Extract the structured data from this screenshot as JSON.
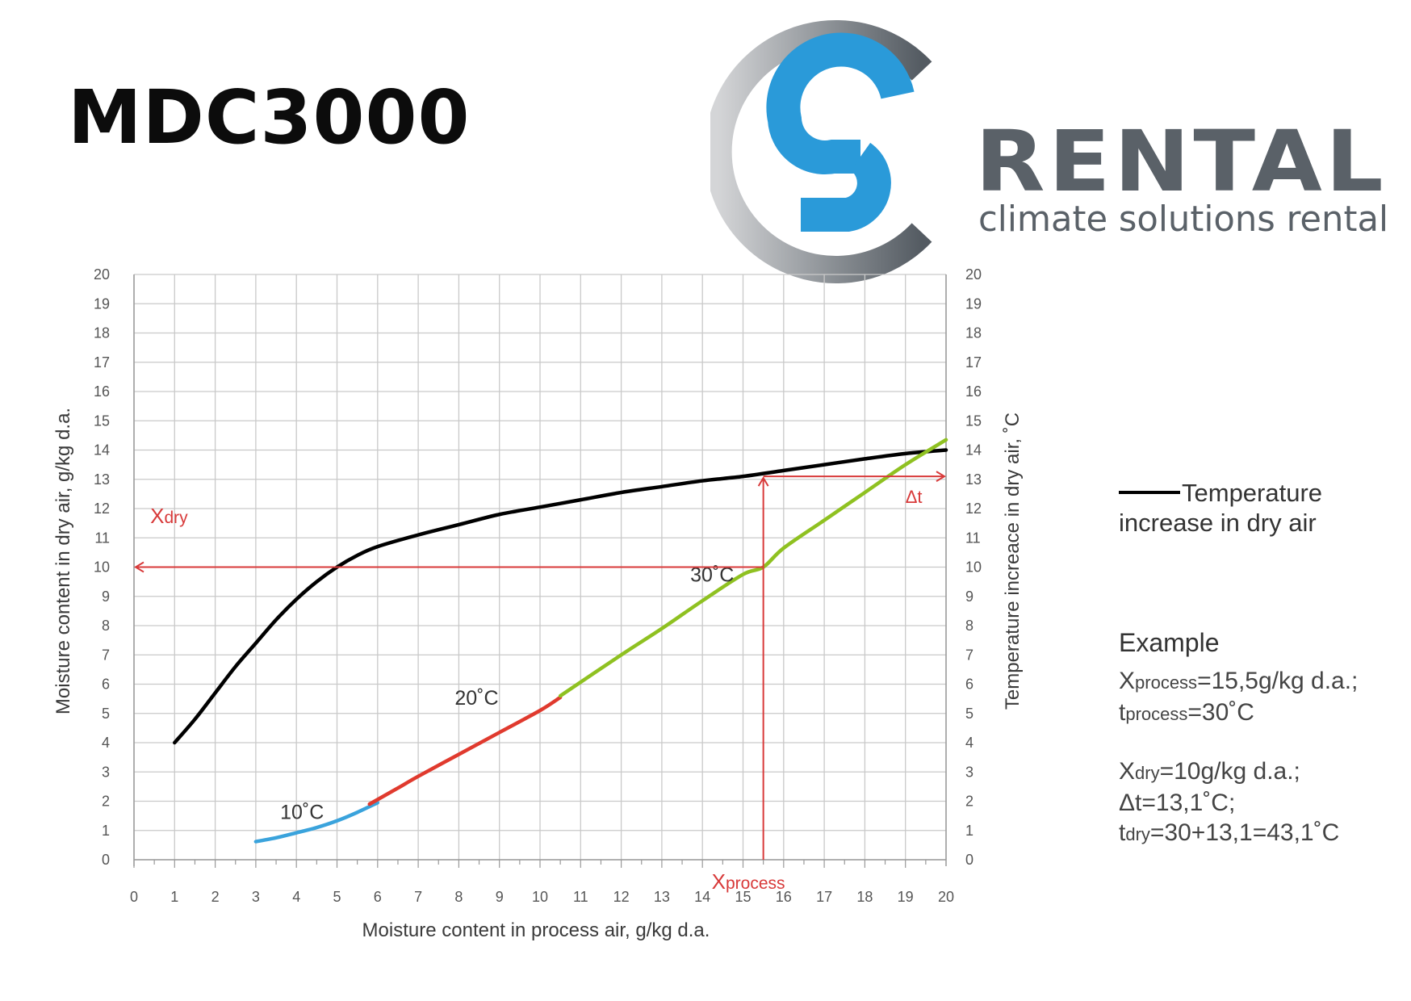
{
  "title": "MDC3000",
  "logo": {
    "brand": "RENTAL",
    "tagline": "climate solutions rental",
    "colors": {
      "blue": "#2a9ad9",
      "gray": "#565e66",
      "light_gray": "#c8cacc"
    }
  },
  "legend": {
    "line_label_1": "Temperature",
    "line_label_2": "increase in dry air"
  },
  "example": {
    "heading": "Example",
    "lines": [
      {
        "sym": "X",
        "sub": "process",
        "rest": "=15,5g/kg d.a.;"
      },
      {
        "sym": "t",
        "sub": "process",
        "rest": "=30˚C"
      },
      {
        "sym": "X",
        "sub": "dry",
        "rest": "=10g/kg d.a.;"
      },
      {
        "sym": "",
        "sub": "",
        "rest": "Δt=13,1˚C;"
      },
      {
        "sym": "t",
        "sub": "dry",
        "rest": "=30+13,1=43,1˚C"
      }
    ]
  },
  "chart_data": {
    "type": "line",
    "xlabel": "Moisture content in process air, g/kg d.a.",
    "ylabel": "Moisture content in dry air, g/kg d.a.",
    "y2label": "Temperature increace in dry air, ˚C",
    "xlim": [
      0,
      20
    ],
    "ylim": [
      0,
      20
    ],
    "y2lim": [
      0,
      20
    ],
    "x_ticks": [
      "0",
      "1",
      "2",
      "3",
      "4",
      "5",
      "6",
      "7",
      "8",
      "9",
      "10",
      "11",
      "12",
      "13",
      "14",
      "15",
      "16",
      "17",
      "18",
      "19",
      "20"
    ],
    "y_ticks": [
      "0",
      "1",
      "2",
      "3",
      "4",
      "5",
      "6",
      "7",
      "8",
      "9",
      "10",
      "11",
      "12",
      "13",
      "14",
      "15",
      "16",
      "17",
      "18",
      "19",
      "20"
    ],
    "grid": true,
    "series": [
      {
        "axis": "right",
        "color": "#000000",
        "points": [
          [
            1,
            4
          ],
          [
            1.5,
            4.8
          ],
          [
            2,
            5.7
          ],
          [
            2.5,
            6.6
          ],
          [
            3,
            7.4
          ],
          [
            3.5,
            8.2
          ],
          [
            4,
            8.9
          ],
          [
            4.5,
            9.5
          ],
          [
            5,
            10
          ],
          [
            5.5,
            10.4
          ],
          [
            6,
            10.7
          ],
          [
            7,
            11.1
          ],
          [
            8,
            11.45
          ],
          [
            9,
            11.8
          ],
          [
            10,
            12.05
          ],
          [
            11,
            12.3
          ],
          [
            12,
            12.55
          ],
          [
            13,
            12.75
          ],
          [
            14,
            12.95
          ],
          [
            15,
            13.1
          ],
          [
            16,
            13.3
          ],
          [
            17,
            13.5
          ],
          [
            18,
            13.7
          ],
          [
            19,
            13.88
          ],
          [
            20,
            14.0
          ]
        ]
      },
      {
        "name": "10˚C",
        "color": "#3aa3dc",
        "points": [
          [
            3,
            0.62
          ],
          [
            3.5,
            0.75
          ],
          [
            4,
            0.92
          ],
          [
            4.5,
            1.1
          ],
          [
            5,
            1.33
          ],
          [
            5.5,
            1.62
          ],
          [
            6,
            1.95
          ]
        ]
      },
      {
        "name": "20˚C",
        "color": "#e03a2e",
        "points": [
          [
            5.8,
            1.9
          ],
          [
            6.5,
            2.45
          ],
          [
            7,
            2.85
          ],
          [
            8,
            3.6
          ],
          [
            9,
            4.35
          ],
          [
            10,
            5.1
          ],
          [
            10.5,
            5.55
          ]
        ]
      },
      {
        "name": "30˚C",
        "color": "#8fc121",
        "points": [
          [
            10.5,
            5.6
          ],
          [
            12,
            7.0
          ],
          [
            13,
            7.9
          ],
          [
            14,
            8.85
          ],
          [
            15,
            9.75
          ],
          [
            15.5,
            10.0
          ],
          [
            16,
            10.65
          ],
          [
            17,
            11.6
          ],
          [
            18,
            12.55
          ],
          [
            19,
            13.5
          ],
          [
            20,
            14.35
          ]
        ]
      }
    ],
    "annotations": {
      "x_process_label": {
        "main": "X",
        "sub": "process"
      },
      "x_dry_label": {
        "main": "X",
        "sub": "dry"
      },
      "delta_t_label": "Δt",
      "example_x_process": 15.5,
      "example_x_dry": 10,
      "example_delta_t": 13.1,
      "color": "#d83a3a"
    }
  }
}
